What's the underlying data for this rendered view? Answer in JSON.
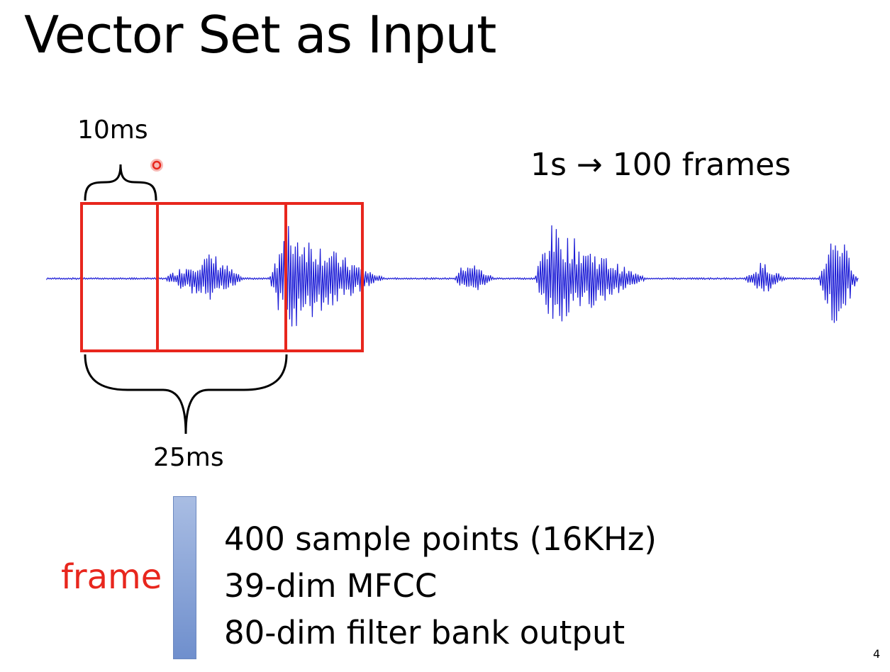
{
  "slide": {
    "title": "Vector Set as Input",
    "page_number": "4"
  },
  "diagram": {
    "hop_label": "10ms",
    "window_label": "25ms",
    "rate_label": "1s → 100 frames",
    "frame_label": "frame",
    "frame_features": [
      "400 sample points (16KHz)",
      "39-dim MFCC",
      "80-dim filter bank output"
    ]
  },
  "colors": {
    "waveform": "#1c1cd6",
    "frame_box": "#e8261d",
    "frame_label": "#e8261d",
    "pointer": "#f5b0ad",
    "frame_bar": "#8aa3d8"
  }
}
